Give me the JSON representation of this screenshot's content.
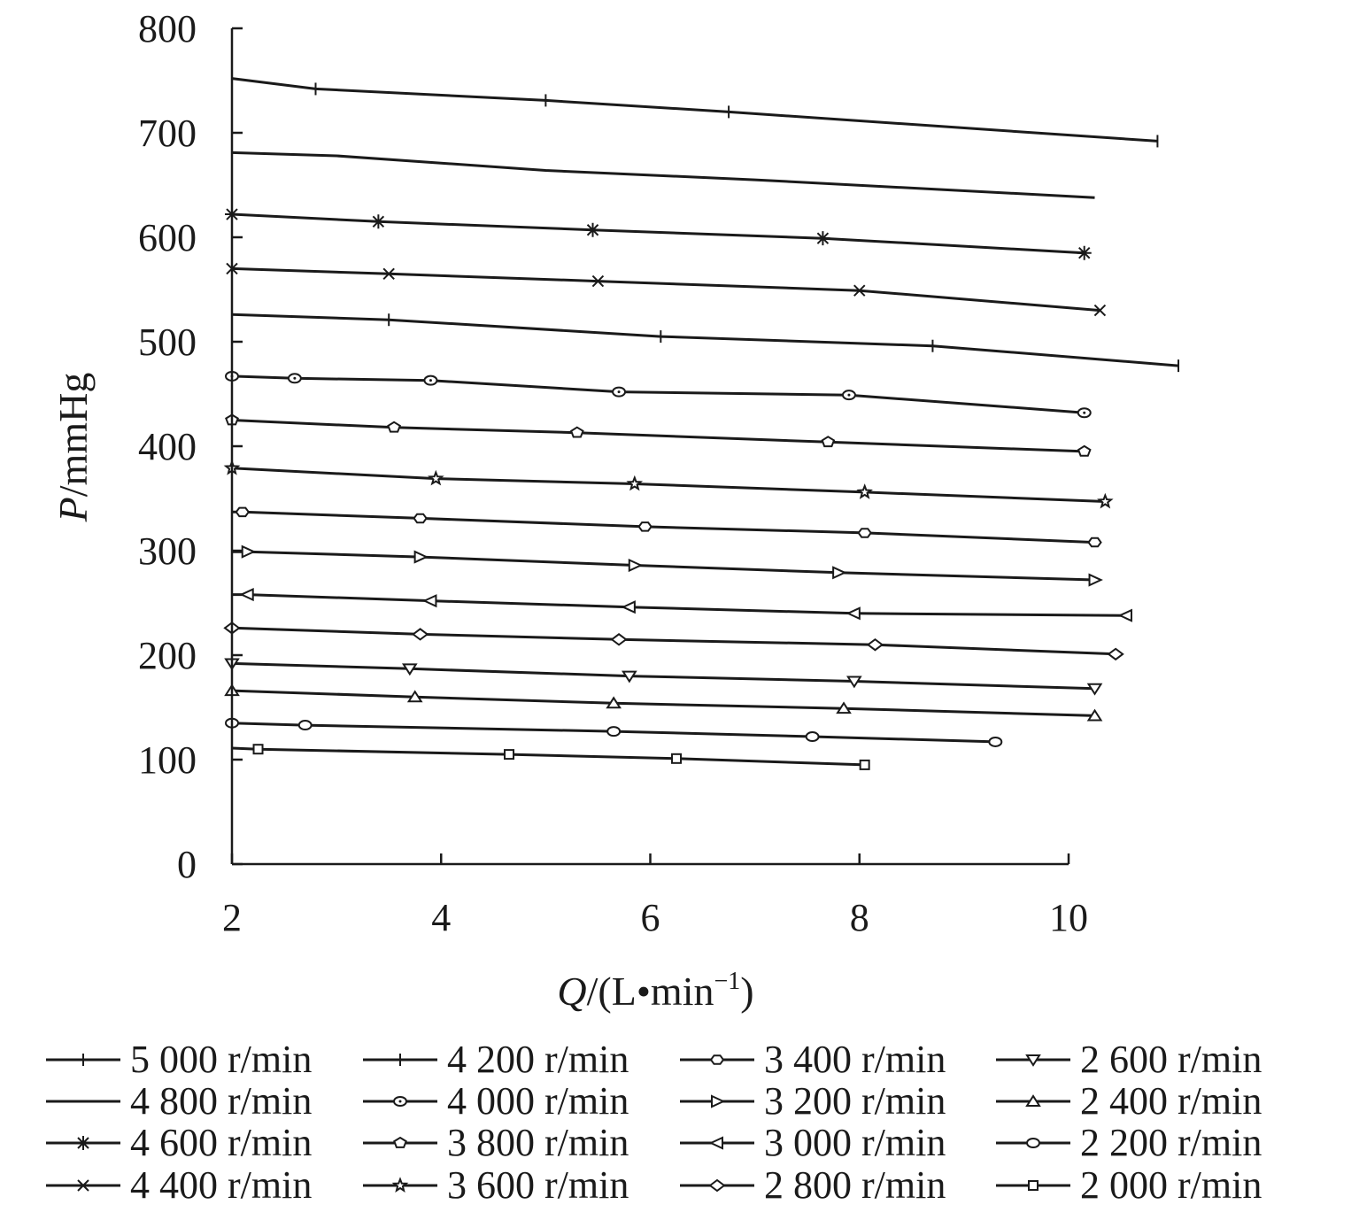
{
  "chart_data": {
    "type": "line",
    "xlabel": {
      "var": "Q",
      "unit_open": "/(L",
      "dot": "•",
      "unit_mid": "min",
      "sup": "−1",
      "unit_close": ")"
    },
    "ylabel": {
      "var": "P",
      "unit": "/mmHg"
    },
    "xlim": [
      2,
      10
    ],
    "ylim": [
      0,
      800
    ],
    "xticks": [
      2,
      4,
      6,
      8,
      10
    ],
    "yticks": [
      0,
      100,
      200,
      300,
      400,
      500,
      600,
      700,
      800
    ],
    "grid": false,
    "legend_position": "bottom",
    "line_color": "#1a1a1a",
    "series": [
      {
        "name": "5 000 r/min",
        "marker": "plus",
        "x": [
          2.0,
          2.8,
          5.0,
          6.75,
          10.85
        ],
        "y": [
          752,
          742,
          731,
          720,
          692
        ]
      },
      {
        "name": "4 800 r/min",
        "marker": "none",
        "x": [
          2.0,
          3.0,
          5.0,
          7.0,
          10.25
        ],
        "y": [
          681,
          678,
          664,
          655,
          638
        ]
      },
      {
        "name": "4 600 r/min",
        "marker": "asterisk",
        "x": [
          2.0,
          3.4,
          5.45,
          7.65,
          10.15
        ],
        "y": [
          622,
          615,
          607,
          599,
          585
        ]
      },
      {
        "name": "4 400 r/min",
        "marker": "x",
        "x": [
          2.0,
          3.5,
          5.5,
          8.0,
          10.3
        ],
        "y": [
          570,
          565,
          558,
          549,
          530
        ]
      },
      {
        "name": "4 200 r/min",
        "marker": "plus",
        "x": [
          2.0,
          3.5,
          6.1,
          8.7,
          11.05
        ],
        "y": [
          526,
          521,
          505,
          496,
          477
        ]
      },
      {
        "name": "4 000 r/min",
        "marker": "circle-dot",
        "x": [
          2.0,
          2.6,
          3.9,
          5.7,
          7.9,
          10.15
        ],
        "y": [
          467,
          465,
          463,
          452,
          449,
          432
        ]
      },
      {
        "name": "3 800 r/min",
        "marker": "pentagon",
        "x": [
          2.0,
          3.55,
          5.3,
          7.7,
          10.15
        ],
        "y": [
          425,
          418,
          413,
          404,
          395
        ]
      },
      {
        "name": "3 600 r/min",
        "marker": "star",
        "x": [
          2.0,
          3.95,
          5.85,
          8.05,
          10.35
        ],
        "y": [
          379,
          369,
          364,
          356,
          347
        ]
      },
      {
        "name": "3 400 r/min",
        "marker": "hexagon",
        "x": [
          2.0,
          2.1,
          3.8,
          5.95,
          8.05,
          10.25
        ],
        "y": [
          337,
          337,
          331,
          323,
          317,
          308
        ]
      },
      {
        "name": "3 200 r/min",
        "marker": "triangle-right",
        "x": [
          2.0,
          2.15,
          3.8,
          5.85,
          7.8,
          10.25
        ],
        "y": [
          299,
          299,
          294,
          286,
          279,
          272
        ]
      },
      {
        "name": "3 000 r/min",
        "marker": "triangle-left",
        "x": [
          2.0,
          2.15,
          3.9,
          5.8,
          7.95,
          10.55
        ],
        "y": [
          258,
          258,
          252,
          246,
          240,
          238
        ]
      },
      {
        "name": "2 800 r/min",
        "marker": "diamond",
        "x": [
          2.0,
          3.8,
          5.7,
          8.15,
          10.45
        ],
        "y": [
          226,
          220,
          215,
          210,
          201
        ]
      },
      {
        "name": "2 600 r/min",
        "marker": "triangle-down",
        "x": [
          2.0,
          3.7,
          5.8,
          7.95,
          10.25
        ],
        "y": [
          192,
          187,
          180,
          175,
          168
        ]
      },
      {
        "name": "2 400 r/min",
        "marker": "triangle-up",
        "x": [
          2.0,
          3.75,
          5.65,
          7.85,
          10.25
        ],
        "y": [
          166,
          160,
          154,
          149,
          142
        ]
      },
      {
        "name": "2 200 r/min",
        "marker": "circle",
        "x": [
          2.0,
          2.7,
          5.65,
          7.55,
          9.3
        ],
        "y": [
          135,
          133,
          127,
          122,
          117
        ]
      },
      {
        "name": "2 000 r/min",
        "marker": "square",
        "x": [
          2.0,
          2.25,
          4.65,
          6.25,
          8.05
        ],
        "y": [
          111,
          110,
          105,
          101,
          95
        ]
      }
    ]
  }
}
